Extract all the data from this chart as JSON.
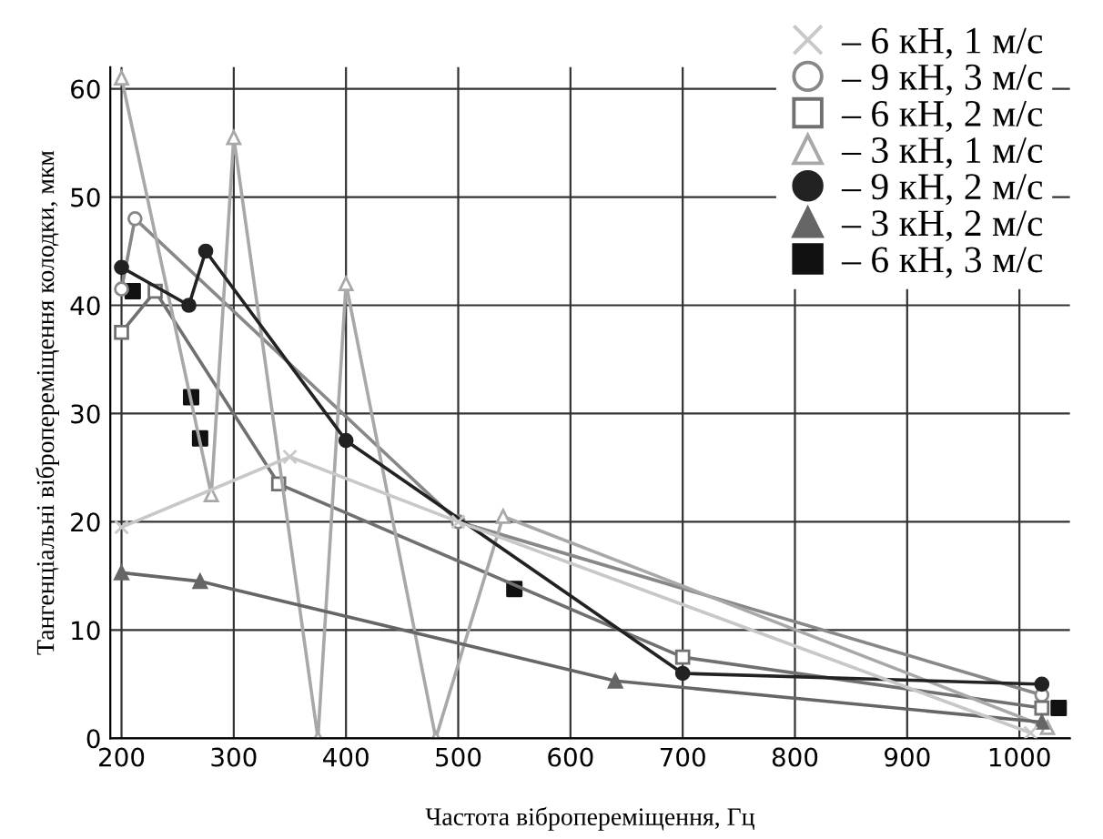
{
  "chart_data": {
    "type": "line",
    "xlabel": "Частота вібропереміщення, Гц",
    "ylabel": "Тангенціальні вібропереміщення колодки, мкм",
    "xlim": [
      190,
      1045
    ],
    "ylim": [
      0,
      62
    ],
    "xticks": [
      200,
      300,
      400,
      500,
      600,
      700,
      800,
      900,
      1000
    ],
    "yticks": [
      0,
      10,
      20,
      30,
      40,
      50,
      60
    ],
    "grid": true,
    "legend": "top right",
    "series": [
      {
        "name": "– 6 кН, 1 м/с",
        "color": "#c8c8c8",
        "marker": "cross",
        "x": [
          200,
          350,
          500,
          1010
        ],
        "values": [
          19.5,
          26,
          20,
          0.5
        ]
      },
      {
        "name": "– 9 кН, 3 м/с",
        "color": "#888888",
        "marker": "circle",
        "x": [
          200,
          212,
          500,
          1020
        ],
        "values": [
          41.5,
          48,
          20,
          4
        ]
      },
      {
        "name": "– 6 кН, 2 м/с",
        "color": "#707070",
        "marker": "square",
        "x": [
          200,
          230,
          340,
          700,
          1020
        ],
        "values": [
          37.5,
          41.3,
          23.5,
          7.5,
          2.8
        ]
      },
      {
        "name": "– 3 кН, 1 м/с",
        "color": "#a8a8a8",
        "marker": "triangle",
        "x": [
          200,
          280,
          300,
          375,
          400,
          480,
          540,
          1025
        ],
        "values": [
          61,
          22.5,
          55.5,
          0,
          42,
          0,
          20.5,
          1
        ]
      },
      {
        "name": "– 9 кН, 2 м/с",
        "color": "#222222",
        "marker": "circle",
        "x": [
          200,
          260,
          275,
          400,
          700,
          1020
        ],
        "values": [
          43.5,
          40,
          45,
          27.5,
          6,
          5
        ]
      },
      {
        "name": "– 3 кН, 2 м/с",
        "color": "#666666",
        "marker": "triangle",
        "x": [
          200,
          270,
          640,
          1020
        ],
        "values": [
          15.3,
          14.5,
          5.3,
          1.5
        ]
      },
      {
        "name": "– 6 кН, 3 м/с",
        "color": "#111111",
        "marker": "square",
        "type": "scatter",
        "x": [
          210,
          262,
          270,
          550,
          1035
        ],
        "values": [
          41.3,
          31.5,
          27.7,
          13.8,
          2.8
        ]
      }
    ]
  }
}
